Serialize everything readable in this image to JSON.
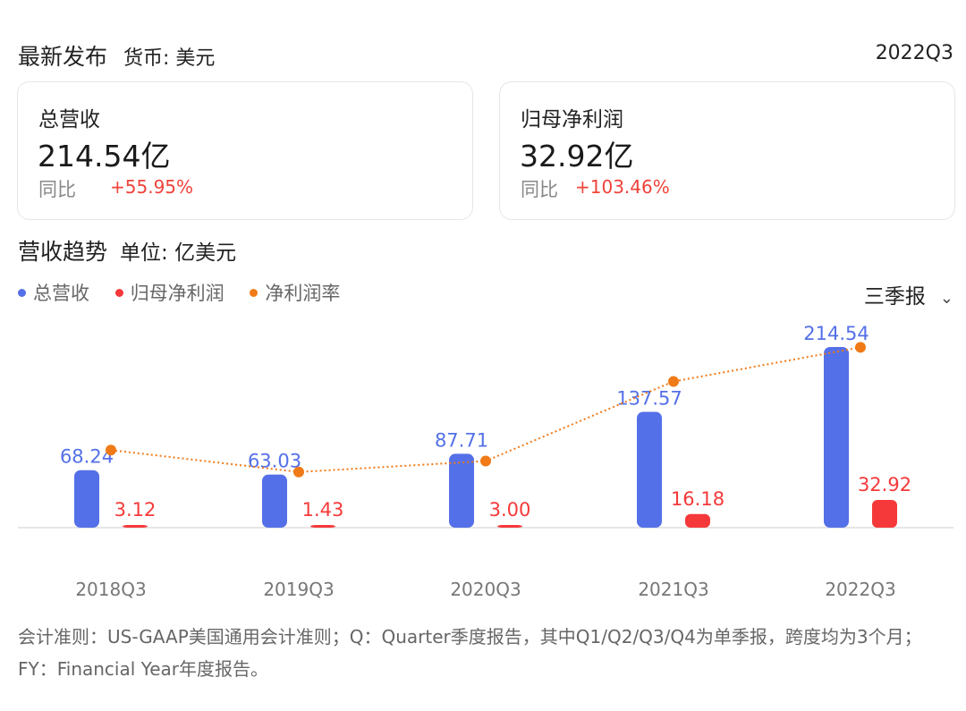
{
  "header": {
    "title": "最新发布",
    "currency": "货币: 美元",
    "period": "2022Q3"
  },
  "cards": [
    {
      "label": "总营收",
      "value": "214.54亿",
      "yoy_label": "同比",
      "yoy_value": "+55.95%"
    },
    {
      "label": "归母净利润",
      "value": "32.92亿",
      "yoy_label": "同比",
      "yoy_value": "+103.46%"
    }
  ],
  "section": {
    "title": "营收趋势",
    "unit": "单位: 亿美元"
  },
  "selector": {
    "label": "三季报",
    "icon": "chevron-down-icon"
  },
  "colors": {
    "revenue": "#5470e8",
    "profit": "#f5393a",
    "margin": "#f07a17",
    "yoy": "#f0423a"
  },
  "chart_data": {
    "type": "bar",
    "categories": [
      "2018Q3",
      "2019Q3",
      "2020Q3",
      "2021Q3",
      "2022Q3"
    ],
    "series": [
      {
        "name": "总营收",
        "type": "bar",
        "values": [
          68.24,
          63.03,
          87.71,
          137.57,
          214.54
        ],
        "labels": [
          "68.24",
          "63.03",
          "87.71",
          "137.57",
          "214.54"
        ]
      },
      {
        "name": "归母净利润",
        "type": "bar",
        "values": [
          3.12,
          1.43,
          3.0,
          16.18,
          32.92
        ],
        "labels": [
          "3.12",
          "1.43",
          "3.00",
          "16.18",
          "32.92"
        ]
      },
      {
        "name": "净利润率",
        "type": "line",
        "values": [
          4.57,
          2.27,
          3.42,
          11.76,
          15.34
        ]
      }
    ],
    "legend_position": "top-left",
    "grid": false
  },
  "footnote": "会计准则：US-GAAP美国通用会计准则；Q：Quarter季度报告，其中Q1/Q2/Q3/Q4为单季报，跨度均为3个月；FY：Financial Year年度报告。"
}
